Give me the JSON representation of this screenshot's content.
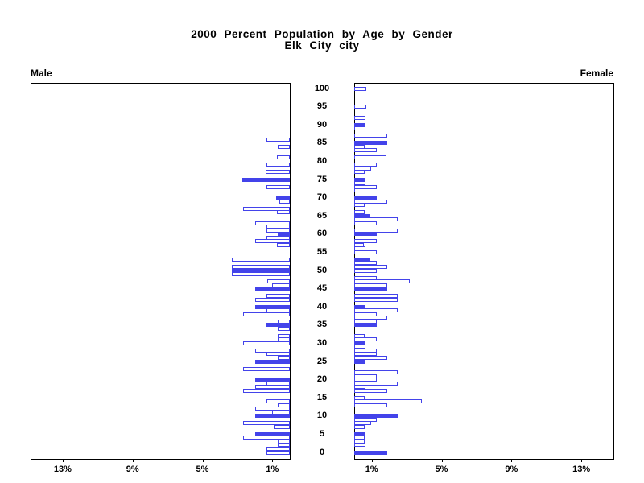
{
  "title": {
    "line1": "2000 Percent Population by Age by Gender",
    "line2": "Elk City city"
  },
  "panels": {
    "male_label": "Male",
    "female_label": "Female"
  },
  "colors": {
    "bar_blue": "#4343EA",
    "bar_empty_fill": "#FFFFFF",
    "axis": "#000000",
    "background": "#FFFFFF"
  },
  "chart_data": {
    "type": "bar",
    "variant": "population-pyramid",
    "title": "2000 Percent Population by Age by Gender",
    "subtitle": "Elk City city",
    "x_axis": {
      "unit": "percent of population",
      "ticks_pct": [
        13,
        9,
        5,
        1
      ],
      "tick_suffix": "%",
      "max_pct": 14.8,
      "note": "male panel increases leftward from center spine, female panel increases rightward"
    },
    "age_axis": {
      "min": 0,
      "max": 100,
      "label_step": 5,
      "bar_step": 1
    },
    "fill_note": "bars at ages divisible by 5 are drawn solid blue, others are white with blue outline",
    "series": [
      {
        "name": "Male",
        "side": "left",
        "bars": [
          {
            "age": 86,
            "value": 1.35,
            "filled": false
          },
          {
            "age": 84,
            "value": 0.7,
            "filled": false
          },
          {
            "age": 81,
            "value": 0.75,
            "filled": false
          },
          {
            "age": 79,
            "value": 1.35,
            "filled": false
          },
          {
            "age": 77,
            "value": 1.4,
            "filled": false
          },
          {
            "age": 75,
            "value": 2.7,
            "filled": true
          },
          {
            "age": 73,
            "value": 1.35,
            "filled": false
          },
          {
            "age": 70,
            "value": 0.8,
            "filled": true
          },
          {
            "age": 69,
            "value": 0.6,
            "filled": false
          },
          {
            "age": 67,
            "value": 2.65,
            "filled": false
          },
          {
            "age": 66,
            "value": 0.75,
            "filled": false
          },
          {
            "age": 63,
            "value": 2.0,
            "filled": false
          },
          {
            "age": 62,
            "value": 1.35,
            "filled": false
          },
          {
            "age": 61,
            "value": 1.35,
            "filled": false
          },
          {
            "age": 60,
            "value": 0.7,
            "filled": true
          },
          {
            "age": 59,
            "value": 1.35,
            "filled": false
          },
          {
            "age": 58,
            "value": 2.0,
            "filled": false
          },
          {
            "age": 57,
            "value": 0.75,
            "filled": false
          },
          {
            "age": 53,
            "value": 3.3,
            "filled": false
          },
          {
            "age": 51,
            "value": 3.3,
            "filled": false
          },
          {
            "age": 50,
            "value": 3.3,
            "filled": true
          },
          {
            "age": 49,
            "value": 3.3,
            "filled": false
          },
          {
            "age": 47,
            "value": 1.3,
            "filled": false
          },
          {
            "age": 46,
            "value": 1.0,
            "filled": false
          },
          {
            "age": 45,
            "value": 2.0,
            "filled": true
          },
          {
            "age": 43,
            "value": 1.35,
            "filled": false
          },
          {
            "age": 42,
            "value": 2.0,
            "filled": false
          },
          {
            "age": 40,
            "value": 2.0,
            "filled": true
          },
          {
            "age": 39,
            "value": 1.35,
            "filled": false
          },
          {
            "age": 38,
            "value": 2.65,
            "filled": false
          },
          {
            "age": 36,
            "value": 0.7,
            "filled": false
          },
          {
            "age": 35,
            "value": 1.35,
            "filled": true
          },
          {
            "age": 34,
            "value": 0.7,
            "filled": false
          },
          {
            "age": 32,
            "value": 0.7,
            "filled": false
          },
          {
            "age": 31,
            "value": 0.7,
            "filled": false
          },
          {
            "age": 30,
            "value": 2.65,
            "filled": false
          },
          {
            "age": 28,
            "value": 2.0,
            "filled": false
          },
          {
            "age": 27,
            "value": 1.35,
            "filled": false
          },
          {
            "age": 26,
            "value": 0.7,
            "filled": false
          },
          {
            "age": 25,
            "value": 2.0,
            "filled": true
          },
          {
            "age": 23,
            "value": 2.65,
            "filled": false
          },
          {
            "age": 20,
            "value": 2.0,
            "filled": true
          },
          {
            "age": 19,
            "value": 1.35,
            "filled": false
          },
          {
            "age": 18,
            "value": 2.0,
            "filled": false
          },
          {
            "age": 17,
            "value": 2.65,
            "filled": false
          },
          {
            "age": 14,
            "value": 1.35,
            "filled": false
          },
          {
            "age": 13,
            "value": 0.7,
            "filled": false
          },
          {
            "age": 12,
            "value": 2.0,
            "filled": false
          },
          {
            "age": 11,
            "value": 1.0,
            "filled": false
          },
          {
            "age": 10,
            "value": 2.0,
            "filled": true
          },
          {
            "age": 8,
            "value": 2.65,
            "filled": false
          },
          {
            "age": 7,
            "value": 0.9,
            "filled": false
          },
          {
            "age": 5,
            "value": 2.0,
            "filled": true
          },
          {
            "age": 4,
            "value": 2.65,
            "filled": false
          },
          {
            "age": 3,
            "value": 0.7,
            "filled": false
          },
          {
            "age": 2,
            "value": 0.7,
            "filled": false
          },
          {
            "age": 1,
            "value": 1.35,
            "filled": false
          },
          {
            "age": 0,
            "value": 1.35,
            "filled": false
          }
        ]
      },
      {
        "name": "Female",
        "side": "right",
        "bars": [
          {
            "age": 100,
            "value": 0.7,
            "filled": false
          },
          {
            "age": 95,
            "value": 0.7,
            "filled": false
          },
          {
            "age": 92,
            "value": 0.65,
            "filled": false
          },
          {
            "age": 90,
            "value": 0.6,
            "filled": true
          },
          {
            "age": 89,
            "value": 0.65,
            "filled": false
          },
          {
            "age": 87,
            "value": 1.9,
            "filled": false
          },
          {
            "age": 85,
            "value": 1.9,
            "filled": true
          },
          {
            "age": 84,
            "value": 0.6,
            "filled": false
          },
          {
            "age": 83,
            "value": 1.3,
            "filled": false
          },
          {
            "age": 81,
            "value": 1.85,
            "filled": false
          },
          {
            "age": 79,
            "value": 1.3,
            "filled": false
          },
          {
            "age": 78,
            "value": 0.95,
            "filled": false
          },
          {
            "age": 77,
            "value": 0.6,
            "filled": false
          },
          {
            "age": 75,
            "value": 0.65,
            "filled": true
          },
          {
            "age": 74,
            "value": 0.65,
            "filled": false
          },
          {
            "age": 73,
            "value": 1.3,
            "filled": false
          },
          {
            "age": 72,
            "value": 0.65,
            "filled": false
          },
          {
            "age": 70,
            "value": 1.3,
            "filled": true
          },
          {
            "age": 69,
            "value": 1.9,
            "filled": false
          },
          {
            "age": 68,
            "value": 0.6,
            "filled": false
          },
          {
            "age": 66,
            "value": 0.6,
            "filled": false
          },
          {
            "age": 65,
            "value": 0.9,
            "filled": true
          },
          {
            "age": 64,
            "value": 2.5,
            "filled": false
          },
          {
            "age": 63,
            "value": 1.3,
            "filled": false
          },
          {
            "age": 61,
            "value": 2.5,
            "filled": false
          },
          {
            "age": 60,
            "value": 1.3,
            "filled": true
          },
          {
            "age": 58,
            "value": 1.3,
            "filled": false
          },
          {
            "age": 57,
            "value": 0.55,
            "filled": false
          },
          {
            "age": 56,
            "value": 0.65,
            "filled": false
          },
          {
            "age": 55,
            "value": 1.3,
            "filled": false
          },
          {
            "age": 53,
            "value": 0.9,
            "filled": true
          },
          {
            "age": 52,
            "value": 1.3,
            "filled": false
          },
          {
            "age": 51,
            "value": 1.9,
            "filled": false
          },
          {
            "age": 50,
            "value": 1.3,
            "filled": false
          },
          {
            "age": 48,
            "value": 1.3,
            "filled": false
          },
          {
            "age": 47,
            "value": 3.2,
            "filled": false
          },
          {
            "age": 46,
            "value": 1.9,
            "filled": false
          },
          {
            "age": 45,
            "value": 1.9,
            "filled": true
          },
          {
            "age": 43,
            "value": 2.5,
            "filled": false
          },
          {
            "age": 42,
            "value": 2.5,
            "filled": false
          },
          {
            "age": 40,
            "value": 0.6,
            "filled": true
          },
          {
            "age": 39,
            "value": 2.5,
            "filled": false
          },
          {
            "age": 38,
            "value": 1.3,
            "filled": false
          },
          {
            "age": 37,
            "value": 1.9,
            "filled": false
          },
          {
            "age": 36,
            "value": 1.3,
            "filled": false
          },
          {
            "age": 35,
            "value": 1.3,
            "filled": true
          },
          {
            "age": 32,
            "value": 0.6,
            "filled": false
          },
          {
            "age": 31,
            "value": 1.3,
            "filled": false
          },
          {
            "age": 30,
            "value": 0.6,
            "filled": true
          },
          {
            "age": 29,
            "value": 0.65,
            "filled": false
          },
          {
            "age": 28,
            "value": 1.3,
            "filled": false
          },
          {
            "age": 27,
            "value": 1.3,
            "filled": false
          },
          {
            "age": 26,
            "value": 1.9,
            "filled": false
          },
          {
            "age": 25,
            "value": 0.6,
            "filled": true
          },
          {
            "age": 22,
            "value": 2.5,
            "filled": false
          },
          {
            "age": 21,
            "value": 1.3,
            "filled": false
          },
          {
            "age": 20,
            "value": 1.3,
            "filled": false
          },
          {
            "age": 19,
            "value": 2.5,
            "filled": false
          },
          {
            "age": 18,
            "value": 0.65,
            "filled": false
          },
          {
            "age": 17,
            "value": 1.9,
            "filled": false
          },
          {
            "age": 15,
            "value": 0.6,
            "filled": false
          },
          {
            "age": 14,
            "value": 3.85,
            "filled": false
          },
          {
            "age": 13,
            "value": 1.9,
            "filled": false
          },
          {
            "age": 10,
            "value": 2.5,
            "filled": true
          },
          {
            "age": 9,
            "value": 1.3,
            "filled": false
          },
          {
            "age": 8,
            "value": 0.95,
            "filled": false
          },
          {
            "age": 7,
            "value": 0.6,
            "filled": false
          },
          {
            "age": 5,
            "value": 0.6,
            "filled": true
          },
          {
            "age": 4,
            "value": 0.6,
            "filled": false
          },
          {
            "age": 3,
            "value": 0.6,
            "filled": false
          },
          {
            "age": 2,
            "value": 0.65,
            "filled": false
          },
          {
            "age": 0,
            "value": 1.9,
            "filled": true
          }
        ]
      }
    ]
  }
}
